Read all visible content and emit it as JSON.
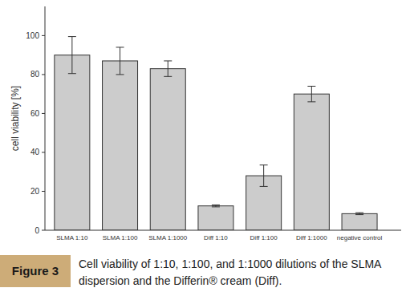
{
  "chart_data": {
    "type": "bar",
    "y_label": "cell viability [%]",
    "caption_label": "Figure 3",
    "caption": "Cell viability of 1:10, 1:100, and 1:1000 dilutions of the SLMA dispersion and the Differin® cream (Diff).",
    "categories": [
      "SLMA 1:10",
      "SLMA 1:100",
      "SLMA 1:1000",
      "Diff 1:10",
      "Diff 1:100",
      "Diff 1:1000",
      "negative control"
    ],
    "values": [
      90,
      87,
      83,
      12.5,
      28,
      70,
      8.5
    ],
    "errors": [
      9.5,
      7,
      4,
      0.5,
      5.5,
      4,
      0.5
    ],
    "color": "#cccccc",
    "ylim": [
      0,
      115
    ],
    "yticks": [
      0,
      20,
      40,
      60,
      80,
      100
    ],
    "grid": false
  }
}
